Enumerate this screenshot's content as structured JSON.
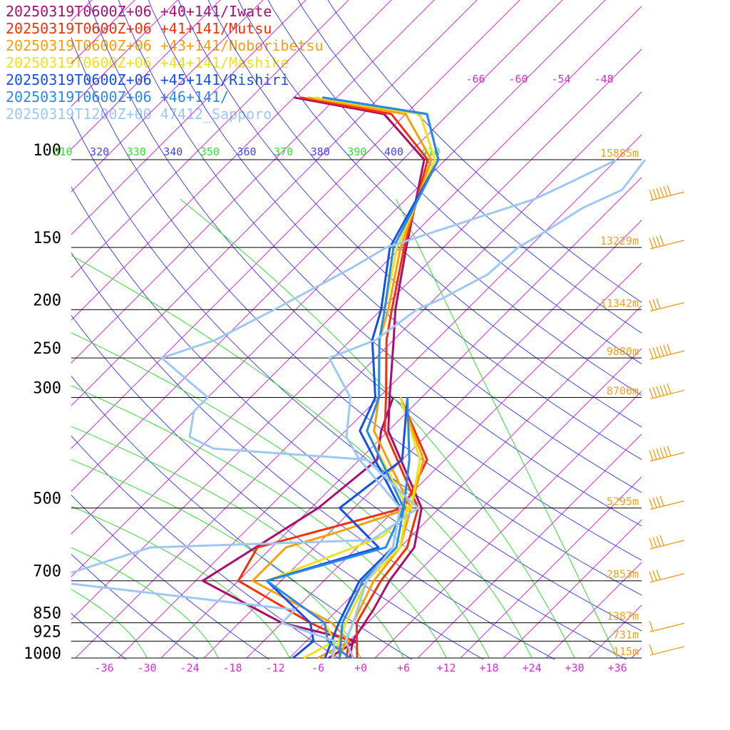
{
  "legend": [
    {
      "text": "20250319T0600Z+06 +40+141/Iwate",
      "color": "#aa0f6e"
    },
    {
      "text": "20250319T0600Z+06 +41+141/Mutsu",
      "color": "#f4300a"
    },
    {
      "text": "20250319T0600Z+06 +43+141/Noboribetsu",
      "color": "#f8a00c"
    },
    {
      "text": "20250319T0600Z+06 +44+141/Mashike",
      "color": "#f0e21a"
    },
    {
      "text": "20250319T0600Z+06 +45+141/Rishiri",
      "color": "#1650e2"
    },
    {
      "text": "20250319T0600Z+06 +46+141/",
      "color": "#2a8ae8"
    },
    {
      "text": "20250319T1200Z+00 47412_Sapporo",
      "color": "#9ec8f4"
    }
  ],
  "chart_data": {
    "type": "line",
    "chart_kind": "skew-T log-P sounding",
    "pressure_levels": [
      {
        "label": "100",
        "p": 100,
        "height": "15885m"
      },
      {
        "label": "150",
        "p": 150,
        "height": "13229m"
      },
      {
        "label": "200",
        "p": 200,
        "height": "11342m"
      },
      {
        "label": "250",
        "p": 250,
        "height": "9880m"
      },
      {
        "label": "300",
        "p": 300,
        "height": "8706m"
      },
      {
        "label": "500",
        "p": 500,
        "height": "5295m"
      },
      {
        "label": "700",
        "p": 700,
        "height": "2853m"
      },
      {
        "label": "850",
        "p": 850,
        "height": "1387m"
      },
      {
        "label": "925",
        "p": 925,
        "height": "731m"
      },
      {
        "label": "1000",
        "p": 1000,
        "height": "115m"
      }
    ],
    "temp_ticks": [
      "-36",
      "-30",
      "-24",
      "-18",
      "-12",
      "-6",
      "+0",
      "+6",
      "+12",
      "+18",
      "+24",
      "+30",
      "+36"
    ],
    "top_temp_labels": [
      "-66",
      "-60",
      "-54",
      "-48"
    ],
    "theta_labels": [
      "310",
      "320",
      "330",
      "340",
      "350",
      "360",
      "370",
      "380",
      "390",
      "400",
      "410"
    ],
    "colors": {
      "isobar": "#000000",
      "isotherm": "#cc33cc",
      "dry_adiabat": "#4444ee",
      "moist_adiabat": "#33dd33",
      "height_label": "#f0a020",
      "wind_barb": "#f0a020"
    },
    "wind_barb_levels": [
      {
        "p": 120,
        "speed_kt": 55
      },
      {
        "p": 150,
        "speed_kt": 40
      },
      {
        "p": 200,
        "speed_kt": 25
      },
      {
        "p": 250,
        "speed_kt": 60
      },
      {
        "p": 300,
        "speed_kt": 60
      },
      {
        "p": 400,
        "speed_kt": 55
      },
      {
        "p": 500,
        "speed_kt": 35
      },
      {
        "p": 600,
        "speed_kt": 35
      },
      {
        "p": 700,
        "speed_kt": 25
      },
      {
        "p": 880,
        "speed_kt": 10
      },
      {
        "p": 980,
        "speed_kt": 10
      }
    ],
    "series": [
      {
        "color": "#aa0f6e",
        "temperature": [
          [
            75,
            -88
          ],
          [
            81,
            -73
          ],
          [
            100,
            -61
          ],
          [
            150,
            -51.2
          ],
          [
            200,
            -44
          ],
          [
            230,
            -40
          ],
          [
            300,
            -32.5
          ],
          [
            350,
            -28
          ],
          [
            500,
            -12.5
          ],
          [
            600,
            -8
          ],
          [
            700,
            -6.8
          ],
          [
            800,
            -5
          ],
          [
            925,
            -3.5
          ],
          [
            1000,
            -1.5
          ]
        ],
        "dewpoint": [
          [
            300,
            -32
          ],
          [
            350,
            -29
          ],
          [
            400,
            -25.5
          ],
          [
            500,
            -27
          ],
          [
            700,
            -33
          ],
          [
            850,
            -16
          ],
          [
            925,
            -3
          ],
          [
            1000,
            -4.5
          ]
        ]
      },
      {
        "color": "#f4300a",
        "temperature": [
          [
            75,
            -87
          ],
          [
            81,
            -72
          ],
          [
            100,
            -60.5
          ],
          [
            150,
            -51.5
          ],
          [
            200,
            -44.5
          ],
          [
            230,
            -41
          ],
          [
            300,
            -33
          ],
          [
            350,
            -28.5
          ],
          [
            500,
            -13
          ],
          [
            600,
            -9
          ],
          [
            700,
            -8
          ],
          [
            850,
            -5.5
          ],
          [
            1000,
            -0.5
          ]
        ],
        "dewpoint": [
          [
            300,
            -31
          ],
          [
            400,
            -18.5
          ],
          [
            500,
            -15
          ],
          [
            600,
            -30
          ],
          [
            700,
            -28
          ],
          [
            850,
            -12
          ],
          [
            925,
            -4
          ],
          [
            1000,
            -2
          ]
        ]
      },
      {
        "color": "#f8a00c",
        "temperature": [
          [
            75,
            -86
          ],
          [
            81,
            -70
          ],
          [
            100,
            -60
          ],
          [
            150,
            -52
          ],
          [
            200,
            -45
          ],
          [
            230,
            -42
          ],
          [
            300,
            -34
          ],
          [
            350,
            -30
          ],
          [
            500,
            -14
          ],
          [
            600,
            -10
          ],
          [
            700,
            -9
          ],
          [
            850,
            -6
          ],
          [
            1000,
            -3
          ]
        ],
        "dewpoint": [
          [
            300,
            -31
          ],
          [
            400,
            -19
          ],
          [
            500,
            -14
          ],
          [
            560,
            -21
          ],
          [
            600,
            -26
          ],
          [
            700,
            -26
          ],
          [
            850,
            -9
          ],
          [
            925,
            -4
          ],
          [
            1000,
            -6
          ]
        ]
      },
      {
        "color": "#f0e21a",
        "temperature": [
          [
            75,
            -85
          ],
          [
            81,
            -68
          ],
          [
            100,
            -59.5
          ],
          [
            150,
            -52.5
          ],
          [
            200,
            -45.5
          ],
          [
            230,
            -42
          ],
          [
            300,
            -34
          ],
          [
            350,
            -31
          ],
          [
            500,
            -14.5
          ],
          [
            600,
            -10
          ],
          [
            700,
            -10
          ],
          [
            850,
            -7
          ],
          [
            1000,
            -4
          ]
        ],
        "dewpoint": [
          [
            300,
            -31
          ],
          [
            400,
            -19.5
          ],
          [
            500,
            -14
          ],
          [
            570,
            -14
          ],
          [
            700,
            -24
          ],
          [
            850,
            -10
          ],
          [
            925,
            -6
          ],
          [
            1000,
            -8
          ]
        ]
      },
      {
        "color": "#1650e2",
        "temperature": [
          [
            75,
            -84
          ],
          [
            81,
            -67
          ],
          [
            100,
            -59
          ],
          [
            150,
            -53.5
          ],
          [
            200,
            -46
          ],
          [
            230,
            -43
          ],
          [
            300,
            -34.5
          ],
          [
            350,
            -32
          ],
          [
            500,
            -15.5
          ],
          [
            600,
            -11
          ],
          [
            700,
            -11
          ],
          [
            850,
            -8
          ],
          [
            1000,
            -5
          ]
        ],
        "dewpoint": [
          [
            300,
            -30
          ],
          [
            400,
            -22
          ],
          [
            500,
            -24
          ],
          [
            600,
            -13
          ],
          [
            700,
            -24
          ],
          [
            850,
            -12
          ],
          [
            925,
            -9
          ],
          [
            1000,
            -9.5
          ]
        ]
      },
      {
        "color": "#2a8ae8",
        "temperature": [
          [
            75,
            -84
          ],
          [
            81,
            -67
          ],
          [
            100,
            -59
          ],
          [
            150,
            -53
          ],
          [
            200,
            -45.5
          ],
          [
            230,
            -42
          ],
          [
            300,
            -34
          ],
          [
            350,
            -31
          ],
          [
            500,
            -15
          ],
          [
            600,
            -10.5
          ],
          [
            700,
            -10.5
          ],
          [
            850,
            -7.5
          ],
          [
            1000,
            -3
          ]
        ],
        "dewpoint": [
          [
            300,
            -30
          ],
          [
            400,
            -21
          ],
          [
            500,
            -15
          ],
          [
            600,
            -12
          ],
          [
            700,
            -24
          ],
          [
            850,
            -10
          ],
          [
            925,
            -7
          ],
          [
            1000,
            -1.5
          ]
        ]
      },
      {
        "color": "#9ec8f4",
        "temperature": [
          [
            100,
            -30
          ],
          [
            115,
            -29
          ],
          [
            125,
            -32
          ],
          [
            140,
            -34
          ],
          [
            150,
            -35.5
          ],
          [
            170,
            -36
          ],
          [
            190,
            -39
          ],
          [
            200,
            -41
          ],
          [
            230,
            -42.5
          ],
          [
            250,
            -46.5
          ],
          [
            300,
            -38
          ],
          [
            360,
            -33
          ],
          [
            400,
            -28
          ],
          [
            500,
            -15.5
          ],
          [
            600,
            -11
          ],
          [
            700,
            -10
          ],
          [
            850,
            -6
          ],
          [
            925,
            -4.5
          ],
          [
            1000,
            -1
          ]
        ],
        "dewpoint": [
          [
            100,
            -34
          ],
          [
            110,
            -37
          ],
          [
            120,
            -40
          ],
          [
            150,
            -54
          ],
          [
            165,
            -56
          ],
          [
            185,
            -59
          ],
          [
            200,
            -61
          ],
          [
            230,
            -65
          ],
          [
            250,
            -70
          ],
          [
            300,
            -58
          ],
          [
            320,
            -58
          ],
          [
            360,
            -55
          ],
          [
            380,
            -50
          ],
          [
            400,
            -27
          ],
          [
            500,
            -13
          ],
          [
            580,
            -15
          ],
          [
            600,
            -45
          ],
          [
            700,
            -55
          ],
          [
            800,
            -16
          ],
          [
            850,
            -16
          ],
          [
            925,
            -6
          ],
          [
            1000,
            -4
          ]
        ]
      }
    ]
  }
}
